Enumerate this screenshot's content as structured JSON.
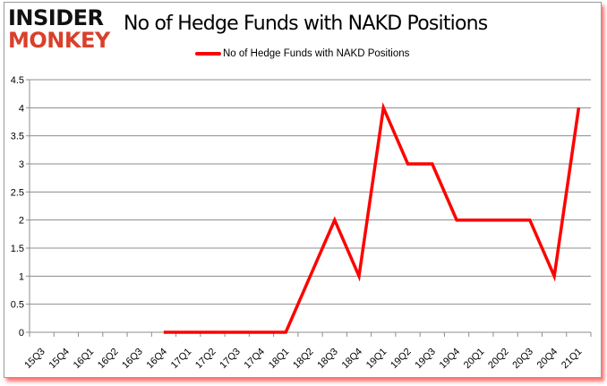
{
  "logo": {
    "line1": "INSIDER",
    "line2": "MONKEY"
  },
  "chart_data": {
    "type": "line",
    "title": "No of Hedge Funds with NAKD Positions",
    "xlabel": "",
    "ylabel": "",
    "categories": [
      "15Q3",
      "15Q4",
      "16Q1",
      "16Q2",
      "16Q3",
      "16Q4",
      "17Q1",
      "17Q2",
      "17Q3",
      "17Q4",
      "18Q1",
      "18Q2",
      "18Q3",
      "18Q4",
      "19Q1",
      "19Q2",
      "19Q3",
      "19Q4",
      "20Q1",
      "20Q2",
      "20Q3",
      "20Q4",
      "21Q1"
    ],
    "series": [
      {
        "name": "No of Hedge Funds with NAKD Positions",
        "color": "#ff0000",
        "values": [
          null,
          null,
          null,
          null,
          null,
          0,
          0,
          0,
          0,
          0,
          0,
          1,
          2,
          1,
          4,
          3,
          3,
          2,
          2,
          2,
          2,
          1,
          4
        ]
      }
    ],
    "ylim": [
      0,
      4.5
    ],
    "yticks": [
      "0",
      "0.5",
      "1",
      "1.5",
      "2",
      "2.5",
      "3",
      "3.5",
      "4",
      "4.5"
    ],
    "grid": true,
    "legend": "top"
  }
}
